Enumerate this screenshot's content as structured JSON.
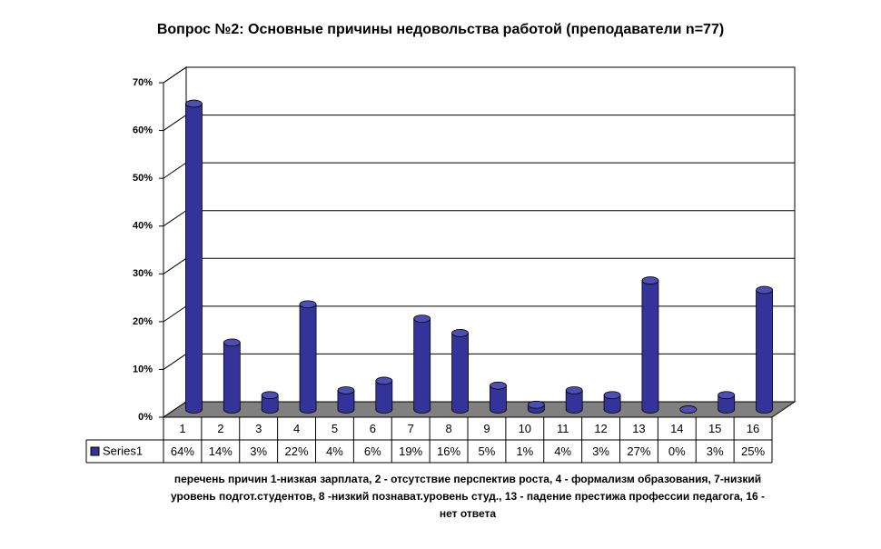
{
  "chart_data": {
    "type": "bar3d",
    "title": "Вопрос №2: Основные причины недовольства работой (преподаватели n=77)",
    "categories": [
      "1",
      "2",
      "3",
      "4",
      "5",
      "6",
      "7",
      "8",
      "9",
      "10",
      "11",
      "12",
      "13",
      "14",
      "15",
      "16"
    ],
    "series": [
      {
        "name": "Series1",
        "color": "#333399",
        "values": [
          64,
          14,
          3,
          22,
          4,
          6,
          19,
          16,
          5,
          1,
          4,
          3,
          27,
          0,
          3,
          25
        ],
        "value_labels": [
          "64%",
          "14%",
          "3%",
          "22%",
          "4%",
          "6%",
          "19%",
          "16%",
          "5%",
          "1%",
          "4%",
          "3%",
          "27%",
          "0%",
          "3%",
          "25%"
        ]
      }
    ],
    "ylim": [
      0,
      70
    ],
    "yticks": [
      {
        "value": 0,
        "label": "0%"
      },
      {
        "value": 10,
        "label": "10%"
      },
      {
        "value": 20,
        "label": "20%"
      },
      {
        "value": 30,
        "label": "30%"
      },
      {
        "value": 40,
        "label": "40%"
      },
      {
        "value": 50,
        "label": "50%"
      },
      {
        "value": 60,
        "label": "60%"
      },
      {
        "value": 70,
        "label": "70%"
      }
    ],
    "grid": true,
    "xlabel": "перечень причин 1-низкая зарплата, 2 - отсутствие перспектив роста, 4 - формализм образования, 7-низкий уровень подгот.студентов, 8 -низкий познават.уровень студ., 13 - падение престижа профессии педагога, 16 - нет ответа"
  }
}
